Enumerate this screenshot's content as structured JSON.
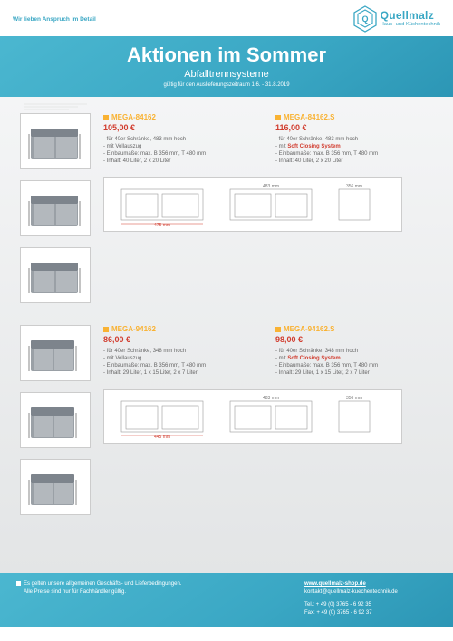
{
  "brand": {
    "tagline": "Wir lieben Anspruch im Detail",
    "name": "Quellmalz",
    "sub": "Haus- und Küchentechnik",
    "logo_color": "#3aa7c4"
  },
  "hero": {
    "title": "Aktionen im Sommer",
    "subtitle": "Abfalltrennsysteme",
    "validity": "gültig für den Auslieferungszeitraum 1.6. - 31.8.2019",
    "bg_from": "#4bb7d0",
    "bg_to": "#2c96b5"
  },
  "accent_orange": "#f9b233",
  "accent_red": "#d13c2e",
  "body_grey_from": "#f4f5f6",
  "body_grey_to": "#e3e5e6",
  "groups": [
    {
      "skus": [
        {
          "sku": "MEGA-84162",
          "price": "105,00 €",
          "lines": [
            "- für 40er Schränke, 483 mm hoch",
            "- mit Vollauszug",
            "- Einbaumaße: max. B 356 mm, T 480 mm",
            "- Inhalt: 40 Liter, 2 x 20 Liter"
          ]
        },
        {
          "sku": "MEGA-84162.S",
          "price": "116,00 €",
          "lines": [
            "- für 40er Schränke, 483 mm hoch",
            "- mit <span class='em'>Soft Closing System</span>",
            "- Einbaumaße: max. B 356 mm, T 480 mm",
            "- Inhalt: 40 Liter, 2 x 20 Liter"
          ]
        }
      ],
      "diagram_label": "475 mm"
    },
    {
      "skus": [
        {
          "sku": "MEGA-94162",
          "price": "86,00 €",
          "lines": [
            "- für 40er Schränke, 348 mm hoch",
            "- mit Vollauszug",
            "- Einbaumaße: max. B 356 mm, T 480 mm",
            "- Inhalt: 29 Liter, 1 x 15 Liter, 2 x 7 Liter"
          ]
        },
        {
          "sku": "MEGA-94162.S",
          "price": "98,00 €",
          "lines": [
            "- für 40er Schränke, 348 mm hoch",
            "- mit <span class='em'>Soft Closing System</span>",
            "- Einbaumaße: max. B 356 mm, T 480 mm",
            "- Inhalt: 29 Liter, 1 x 15 Liter, 2 x 7 Liter"
          ]
        }
      ],
      "diagram_label": "445 mm"
    }
  ],
  "footer": {
    "terms": "Es gelten unsere allgemeinen Geschäfts- und Lieferbedingungen.",
    "note": "Alle Preise sind nur für Fachhändler gültig.",
    "url": "www.quellmalz-shop.de",
    "email": "kontakt@quellmalz-kuechentechnik.de",
    "tel": "Tel.: + 49 (0) 3765 - 6 92 35",
    "fax": "Fax: + 49 (0) 3765 - 6 92 37"
  }
}
